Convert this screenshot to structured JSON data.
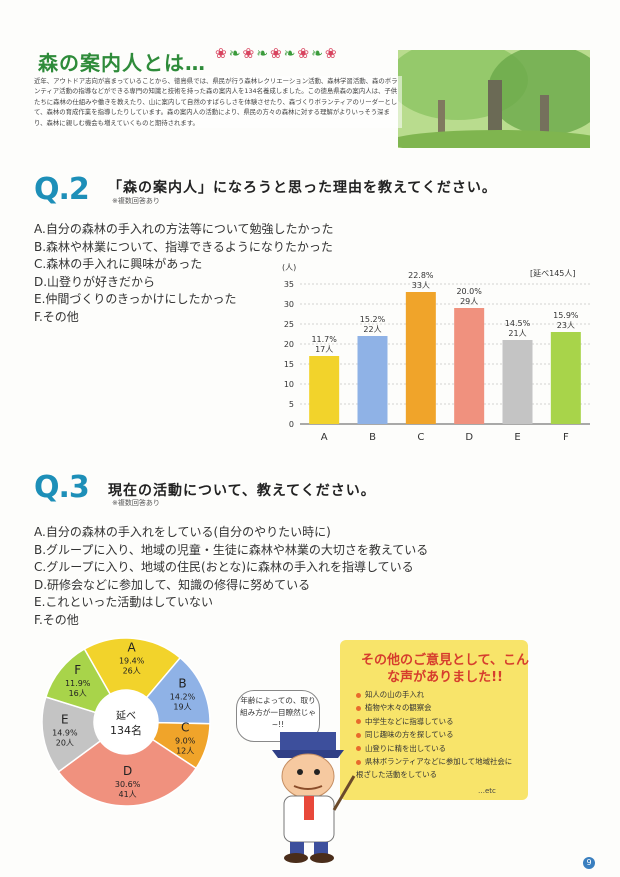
{
  "intro": {
    "title": "森の案内人とは…",
    "text": "近年、アウトドア志向が高まっていることから、徳島県では、県民が行う森林レクリエーション活動、森林学習活動、森のボランティア活動の指導などができる専門の知識と技術を持った森の案内人を134名養成しました。この徳島県森の案内人は、子供たちに森林の仕組みや働きを教えたり、山に案内して自然のすばらしさを体験させたり、森づくりボランティアのリーダーとして、森林の育成作業を指導したりしています。森の案内人の活動により、県民の方々の森林に対する理解がよりいっそう深まり、森林に親しむ機会も増えていくものと期待されます。"
  },
  "q2": {
    "number": "Q.2",
    "title": "「森の案内人」になろうと思った理由を教えてください。",
    "note": "※複数回答あり",
    "options": [
      "A.自分の森林の手入れの方法等について勉強したかった",
      "B.森林や林業について、指導できるようになりたかった",
      "C.森林の手入れに興味があった",
      "D.山登りが好きだから",
      "E.仲間づくりのきっかけにしたかった",
      "F.その他"
    ]
  },
  "q3": {
    "number": "Q.3",
    "title": "現在の活動について、教えてください。",
    "note": "※複数回答あり",
    "options": [
      "A.自分の森林の手入れをしている(自分のやりたい時に)",
      "B.グループに入り、地域の児童・生徒に森林や林業の大切さを教えている",
      "C.グループに入り、地域の住民(おとな)に森林の手入れを指導している",
      "D.研修会などに参加して、知識の修得に努めている",
      "E.これといった活動はしていない",
      "F.その他"
    ]
  },
  "chart_data": [
    {
      "type": "bar",
      "categories": [
        "A",
        "B",
        "C",
        "D",
        "E",
        "F"
      ],
      "values": [
        17,
        22,
        33,
        29,
        21,
        23
      ],
      "percent_labels": [
        "11.7%",
        "15.2%",
        "22.8%",
        "20.0%",
        "14.5%",
        "15.9%"
      ],
      "count_labels": [
        "17人",
        "22人",
        "33人",
        "29人",
        "21人",
        "23人"
      ],
      "colors": [
        "#f2d32b",
        "#8fb2e6",
        "#f0a42a",
        "#f0917e",
        "#c4c4c4",
        "#a8d44a"
      ],
      "ylabel": "(人)",
      "yticks": [
        0,
        5,
        10,
        15,
        20,
        25,
        30,
        35
      ],
      "ylim": [
        0,
        35
      ],
      "total_label": "[延べ145人]",
      "grid": true
    },
    {
      "type": "pie",
      "categories": [
        "A",
        "B",
        "C",
        "D",
        "E",
        "F"
      ],
      "values": [
        26,
        19,
        12,
        41,
        20,
        16
      ],
      "percent_labels": [
        "19.4%",
        "14.2%",
        "9.0%",
        "30.6%",
        "14.9%",
        "11.9%"
      ],
      "count_labels": [
        "26人",
        "19人",
        "12人",
        "41人",
        "20人",
        "16人"
      ],
      "colors": [
        "#f2d32b",
        "#8fb2e6",
        "#f0a42a",
        "#f0917e",
        "#c4c4c4",
        "#a8d44a"
      ],
      "center_label": [
        "延べ",
        "134名"
      ]
    }
  ],
  "callout": {
    "title": "その他のご意見として、こんな声がありました!!",
    "items": [
      "知人の山の手入れ",
      "植物や木々の観察会",
      "中学生などに指導している",
      "同じ趣味の方を探している",
      "山登りに精を出している",
      "県林ボランティアなどに参加して地域社会に根ざした活動をしている"
    ],
    "etc": "…etc"
  },
  "speech": "年齢によっての、取り組み方が一目瞭然じゃ~!!",
  "page_number": "9"
}
